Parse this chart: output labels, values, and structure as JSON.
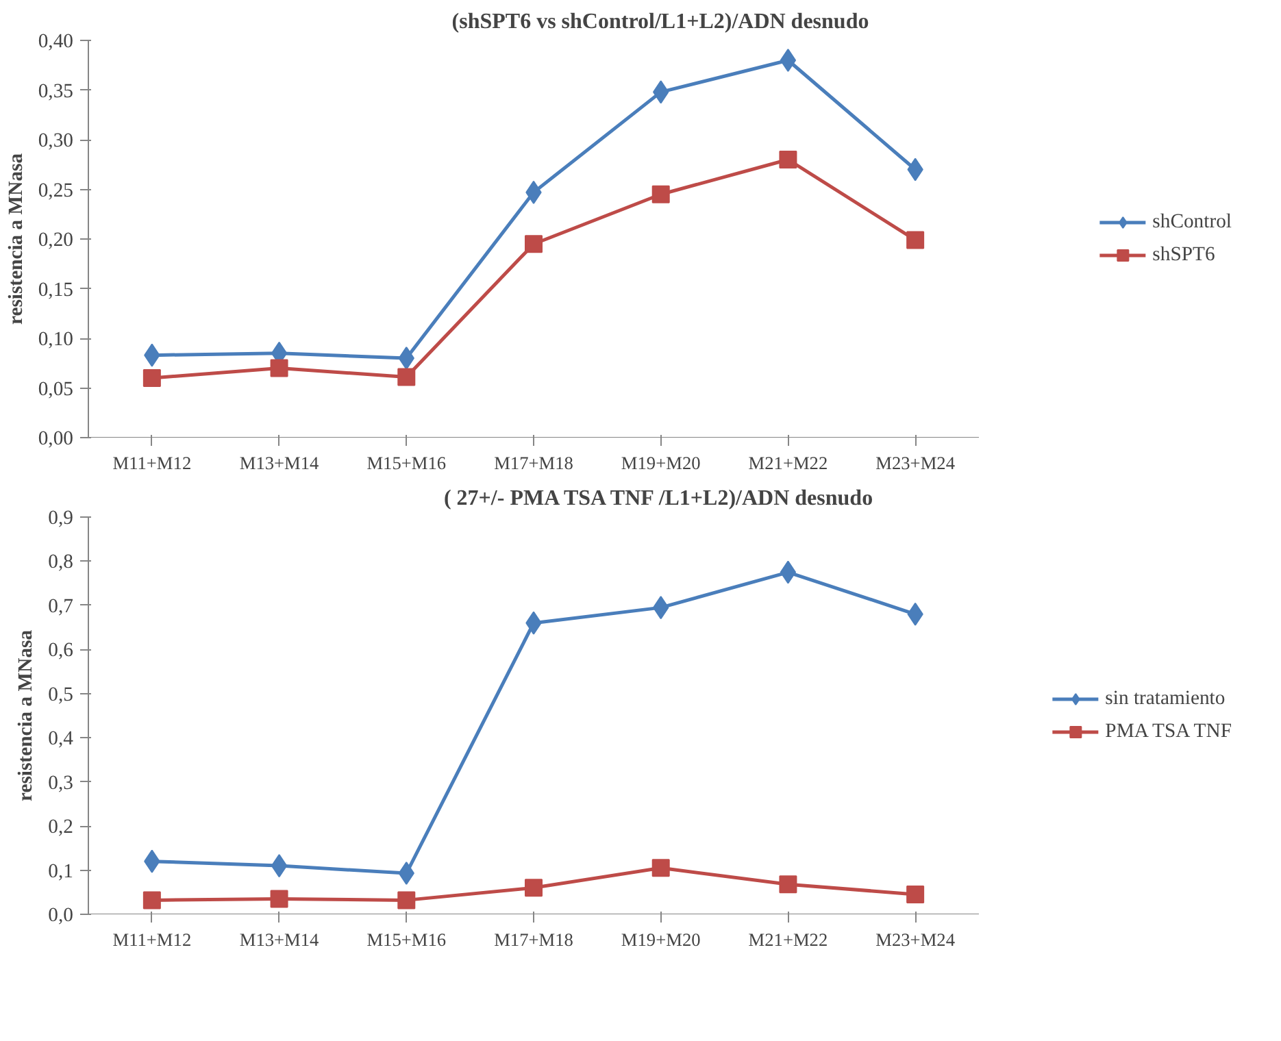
{
  "chart_data": [
    {
      "type": "line",
      "title": "(shSPT6 vs shControl/L1+L2)/ADN desnudo",
      "ylabel": "resistencia a MNasa",
      "categories": [
        "M11+M12",
        "M13+M14",
        "M15+M16",
        "M17+M18",
        "M19+M20",
        "M21+M22",
        "M23+M24"
      ],
      "series": [
        {
          "name": "shControl",
          "color": "#4a7ebb",
          "marker": "diamond",
          "values": [
            0.083,
            0.085,
            0.08,
            0.247,
            0.348,
            0.38,
            0.27
          ]
        },
        {
          "name": "shSPT6",
          "color": "#be4b48",
          "marker": "square",
          "values": [
            0.06,
            0.07,
            0.061,
            0.195,
            0.245,
            0.28,
            0.199
          ]
        }
      ],
      "ylim": [
        0,
        0.4
      ],
      "yticks": [
        {
          "value": 0,
          "label": "0,00"
        },
        {
          "value": 0.05,
          "label": "0,05"
        },
        {
          "value": 0.1,
          "label": "0,10"
        },
        {
          "value": 0.15,
          "label": "0,15"
        },
        {
          "value": 0.2,
          "label": "0,20"
        },
        {
          "value": 0.25,
          "label": "0,25"
        },
        {
          "value": 0.3,
          "label": "0,30"
        },
        {
          "value": 0.35,
          "label": "0,35"
        },
        {
          "value": 0.4,
          "label": "0,40"
        }
      ],
      "grid": false,
      "legend": "right",
      "line_style": "solid"
    },
    {
      "type": "line",
      "title": "( 27+/- PMA TSA TNF /L1+L2)/ADN desnudo",
      "ylabel": "resistencia a MNasa",
      "categories": [
        "M11+M12",
        "M13+M14",
        "M15+M16",
        "M17+M18",
        "M19+M20",
        "M21+M22",
        "M23+M24"
      ],
      "series": [
        {
          "name": "sin tratamiento",
          "color": "#4a7ebb",
          "marker": "diamond",
          "values": [
            0.12,
            0.11,
            0.093,
            0.66,
            0.695,
            0.775,
            0.68
          ]
        },
        {
          "name": "PMA TSA TNF",
          "color": "#be4b48",
          "marker": "square",
          "values": [
            0.032,
            0.035,
            0.032,
            0.06,
            0.105,
            0.068,
            0.045
          ]
        }
      ],
      "ylim": [
        0,
        0.9
      ],
      "yticks": [
        {
          "value": 0,
          "label": "0,0"
        },
        {
          "value": 0.1,
          "label": "0,1"
        },
        {
          "value": 0.2,
          "label": "0,2"
        },
        {
          "value": 0.3,
          "label": "0,3"
        },
        {
          "value": 0.4,
          "label": "0,4"
        },
        {
          "value": 0.5,
          "label": "0,5"
        },
        {
          "value": 0.6,
          "label": "0,6"
        },
        {
          "value": 0.7,
          "label": "0,7"
        },
        {
          "value": 0.8,
          "label": "0,8"
        },
        {
          "value": 0.9,
          "label": "0,9"
        }
      ],
      "grid": false,
      "legend": "right",
      "line_style": "solid"
    }
  ]
}
